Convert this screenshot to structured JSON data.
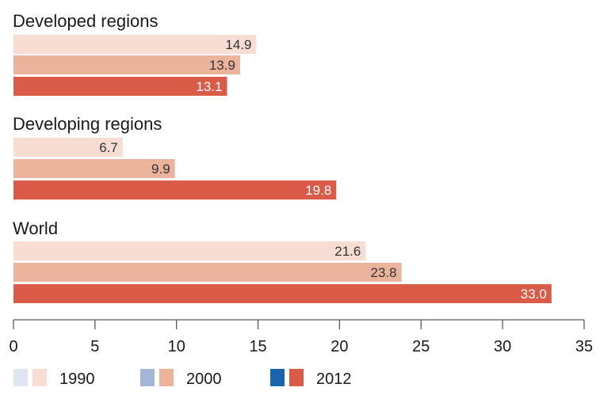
{
  "chart_data": {
    "type": "bar",
    "orientation": "horizontal",
    "title": "",
    "xlabel": "",
    "ylabel": "",
    "xlim": [
      0,
      35
    ],
    "x_ticks": [
      0,
      5,
      10,
      15,
      20,
      25,
      30,
      35
    ],
    "grid": false,
    "legend_position": "bottom-left",
    "categories": [
      "Developed regions",
      "Developing regions",
      "World"
    ],
    "series": [
      {
        "name": "1990",
        "values": [
          14.9,
          6.7,
          21.6
        ],
        "labels": [
          "14.9",
          "6.7",
          "21.6"
        ],
        "color": "#f7ddd3",
        "label_color": "#333333",
        "legend_swatch_alt": "#dfe5f1"
      },
      {
        "name": "2000",
        "values": [
          13.9,
          9.9,
          23.8
        ],
        "labels": [
          "13.9",
          "9.9",
          "23.8"
        ],
        "color": "#ebb39c",
        "label_color": "#333333",
        "legend_swatch_alt": "#a4b5da"
      },
      {
        "name": "2012",
        "values": [
          13.1,
          19.8,
          33.0
        ],
        "labels": [
          "13.1",
          "19.8",
          "33.0"
        ],
        "color": "#d95b48",
        "label_color": "#ffffff",
        "legend_swatch_alt": "#1a66ad"
      }
    ],
    "axis_color": "#5a5a5a"
  }
}
